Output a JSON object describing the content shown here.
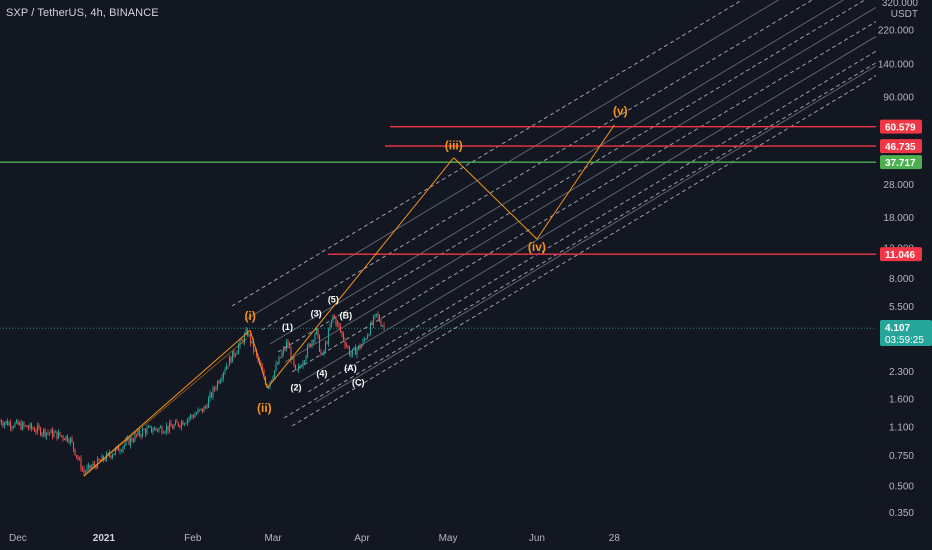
{
  "header": {
    "title": "SXP / TetherUS, 4h, BINANCE"
  },
  "colors": {
    "background": "#131722",
    "candle_up": "#26a69a",
    "candle_down": "#ef5350",
    "wave_orange": "#f7931a",
    "horizontal_red": "#f23645",
    "horizontal_green": "#4caf50",
    "channel_dash": "#c8cad0",
    "channel_solid": "#9598a1",
    "current_price": "#26a69a"
  },
  "price_axis": {
    "unit": "USDT",
    "top_label": "320.000",
    "labels": [
      "220.000",
      "140.000",
      "90.000",
      "28.000",
      "18.000",
      "12.000",
      "8.000",
      "5.500",
      "2.300",
      "1.600",
      "1.100",
      "0.750",
      "0.500",
      "0.350"
    ]
  },
  "time_axis": {
    "labels": [
      {
        "text": "Dec",
        "bold": false
      },
      {
        "text": "2021",
        "bold": true
      },
      {
        "text": "Feb",
        "bold": false
      },
      {
        "text": "Mar",
        "bold": false
      },
      {
        "text": "Apr",
        "bold": false
      },
      {
        "text": "May",
        "bold": false
      },
      {
        "text": "Jun",
        "bold": false
      },
      {
        "text": "28",
        "bold": false
      }
    ]
  },
  "current_price": {
    "value": "4.107",
    "countdown": "03:59:25"
  },
  "chart_data": {
    "type": "line",
    "title": "SXP / TetherUS, 4h, BINANCE",
    "y_scale": "log",
    "ylim": [
      0.32,
      330
    ],
    "y_unit": "USDT",
    "horizontal_levels": [
      {
        "value": 60.579,
        "label": "60.579",
        "color": "#f23645"
      },
      {
        "value": 46.735,
        "label": "46.735",
        "color": "#f23645"
      },
      {
        "value": 37.717,
        "label": "37.717",
        "color": "#4caf50"
      },
      {
        "value": 11.046,
        "label": "11.046",
        "color": "#f23645"
      }
    ],
    "major_waves": [
      {
        "label": "(i)",
        "date": "2021-02-21",
        "price": 4.0
      },
      {
        "label": "(ii)",
        "date": "2021-02-27",
        "price": 1.85
      },
      {
        "label": "(iii)",
        "date": "2021-05-03",
        "price": 40.0
      },
      {
        "label": "(iv)",
        "date": "2021-06-01",
        "price": 13.5
      },
      {
        "label": "(v)",
        "date": "2021-06-28",
        "price": 62.0
      }
    ],
    "minor_waves": [
      {
        "label": "(1)",
        "date": "2021-03-06",
        "price": 3.5
      },
      {
        "label": "(2)",
        "date": "2021-03-09",
        "price": 2.15
      },
      {
        "label": "(3)",
        "date": "2021-03-16",
        "price": 4.2
      },
      {
        "label": "(4)",
        "date": "2021-03-18",
        "price": 2.6
      },
      {
        "label": "(5)",
        "date": "2021-03-22",
        "price": 5.2
      },
      {
        "label": "(A)",
        "date": "2021-03-28",
        "price": 2.8
      },
      {
        "label": "(B)",
        "date": "2021-03-25",
        "price": 4.2
      },
      {
        "label": "(C)",
        "date": "2021-03-30",
        "price": 2.3
      }
    ],
    "price_path": [
      {
        "date": "2020-11-20",
        "price": 1.25
      },
      {
        "date": "2020-12-05",
        "price": 1.1
      },
      {
        "date": "2020-12-20",
        "price": 0.95
      },
      {
        "date": "2020-12-25",
        "price": 0.6
      },
      {
        "date": "2021-01-05",
        "price": 0.8
      },
      {
        "date": "2021-01-15",
        "price": 1.05
      },
      {
        "date": "2021-01-25",
        "price": 1.1
      },
      {
        "date": "2021-02-05",
        "price": 1.4
      },
      {
        "date": "2021-02-12",
        "price": 2.4
      },
      {
        "date": "2021-02-20",
        "price": 3.9
      },
      {
        "date": "2021-02-27",
        "price": 1.9
      },
      {
        "date": "2021-03-06",
        "price": 3.4
      },
      {
        "date": "2021-03-09",
        "price": 2.2
      },
      {
        "date": "2021-03-16",
        "price": 4.0
      },
      {
        "date": "2021-03-18",
        "price": 2.7
      },
      {
        "date": "2021-03-22",
        "price": 4.9
      },
      {
        "date": "2021-03-28",
        "price": 2.9
      },
      {
        "date": "2021-04-01",
        "price": 3.3
      },
      {
        "date": "2021-04-06",
        "price": 4.9
      },
      {
        "date": "2021-04-09",
        "price": 4.107
      }
    ]
  }
}
